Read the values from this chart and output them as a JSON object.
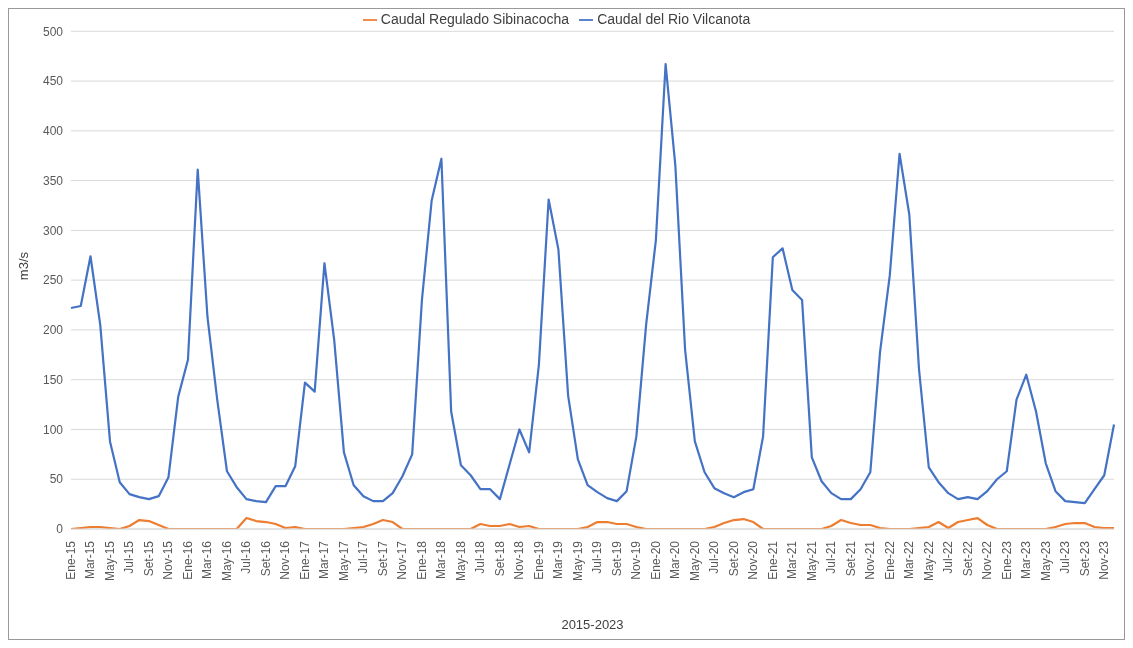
{
  "chart_data": {
    "type": "line",
    "xlabel": "2015-2023",
    "ylabel": "m3/s",
    "categories": [
      "Ene-15",
      null,
      "Mar-15",
      null,
      "May-15",
      null,
      "Jul-15",
      null,
      "Set-15",
      null,
      "Nov-15",
      null,
      "Ene-16",
      null,
      "Mar-16",
      null,
      "May-16",
      null,
      "Jul-16",
      null,
      "Set-16",
      null,
      "Nov-16",
      null,
      "Ene-17",
      null,
      "Mar-17",
      null,
      "May-17",
      null,
      "Jul-17",
      null,
      "Set-17",
      null,
      "Nov-17",
      null,
      "Ene-18",
      null,
      "Mar-18",
      null,
      "May-18",
      null,
      "Jul-18",
      null,
      "Set-18",
      null,
      "Nov-18",
      null,
      "Ene-19",
      null,
      "Mar-19",
      null,
      "May-19",
      null,
      "Jul-19",
      null,
      "Set-19",
      null,
      "Nov-19",
      null,
      "Ene-20",
      null,
      "Mar-20",
      null,
      "May-20",
      null,
      "Jul-20",
      null,
      "Set-20",
      null,
      "Nov-20",
      null,
      "Ene-21",
      null,
      "Mar-21",
      null,
      "May-21",
      null,
      "Jul-21",
      null,
      "Set-21",
      null,
      "Nov-21",
      null,
      "Ene-22",
      null,
      "Mar-22",
      null,
      "May-22",
      null,
      "Jul-22",
      null,
      "Set-22",
      null,
      "Nov-22",
      null,
      "Ene-23",
      null,
      "Mar-23",
      null,
      "May-23",
      null,
      "Jul-23",
      null,
      "Set-23",
      null,
      "Nov-23",
      null
    ],
    "series": [
      {
        "name": "Caudal del Rio Vilcanota",
        "color": "#4472c4",
        "values": [
          222,
          224,
          274,
          205,
          88,
          47,
          35,
          32,
          30,
          33,
          52,
          133,
          170,
          361,
          213,
          130,
          58,
          42,
          30,
          28,
          27,
          43,
          43,
          63,
          147,
          138,
          267,
          190,
          77,
          44,
          33,
          28,
          28,
          36,
          53,
          75,
          230,
          330,
          372,
          118,
          64,
          54,
          40,
          40,
          30,
          65,
          100,
          77,
          165,
          331,
          281,
          134,
          70,
          44,
          37,
          31,
          28,
          38,
          93,
          205,
          290,
          467,
          365,
          180,
          88,
          57,
          41,
          36,
          32,
          37,
          40,
          93,
          273,
          282,
          240,
          230,
          72,
          48,
          36,
          30,
          30,
          40,
          57,
          178,
          255,
          377,
          316,
          160,
          62,
          47,
          36,
          30,
          32,
          30,
          38,
          50,
          58,
          130,
          155,
          118,
          66,
          38,
          28,
          27,
          26,
          40,
          54,
          105
        ]
      },
      {
        "name": "Caudal Regulado Sibinacocha",
        "color": "#ed7d31",
        "values": [
          0,
          1,
          2,
          2,
          1,
          0,
          3,
          9,
          8,
          4,
          0,
          0,
          0,
          0,
          0,
          0,
          0,
          0,
          11,
          8,
          7,
          5,
          1,
          2,
          0,
          0,
          0,
          0,
          0,
          1,
          2,
          5,
          9,
          7,
          0,
          0,
          0,
          0,
          0,
          0,
          0,
          0,
          5,
          3,
          3,
          5,
          2,
          3,
          0,
          0,
          0,
          0,
          0,
          2,
          7,
          7,
          5,
          5,
          2,
          0,
          0,
          0,
          0,
          0,
          0,
          0,
          2,
          6,
          9,
          10,
          7,
          0,
          0,
          0,
          0,
          0,
          0,
          0,
          3,
          9,
          6,
          4,
          4,
          1,
          0,
          0,
          0,
          1,
          2,
          7,
          1,
          7,
          9,
          11,
          4,
          0,
          0,
          0,
          0,
          0,
          0,
          2,
          5,
          6,
          6,
          2,
          1,
          1
        ]
      }
    ],
    "ylim": [
      0,
      500
    ],
    "yticks": [
      0,
      50,
      100,
      150,
      200,
      250,
      300,
      350,
      400,
      450,
      500
    ],
    "grid": "y",
    "legend": "top",
    "marker": "none",
    "line_style": "solid"
  }
}
